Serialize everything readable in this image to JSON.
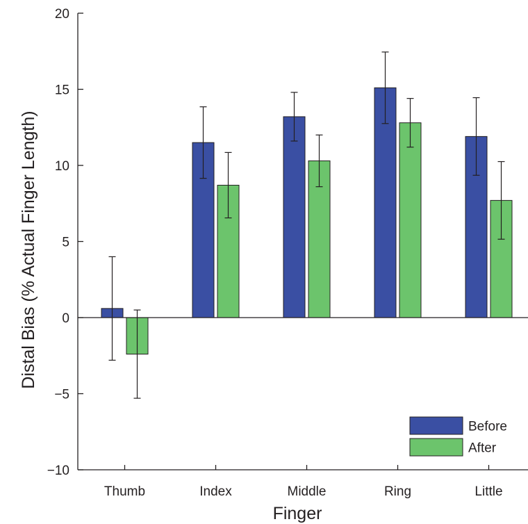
{
  "chart_data": {
    "type": "bar",
    "xlabel": "Finger",
    "ylabel": "Distal Bias (% Actual Finger Length)",
    "categories": [
      "Thumb",
      "Index",
      "Middle",
      "Ring",
      "Little"
    ],
    "ylim": [
      -10,
      20
    ],
    "yticks": [
      -10,
      -5,
      0,
      5,
      10,
      15,
      20
    ],
    "ytick_labels": [
      "−10",
      "−5",
      "0",
      "5",
      "10",
      "15",
      "20"
    ],
    "grid": false,
    "legend_position": "bottom-right",
    "series": [
      {
        "name": "Before",
        "color": "#3a4fa3",
        "values": [
          0.6,
          11.5,
          13.2,
          15.1,
          11.9
        ],
        "error": [
          3.4,
          2.35,
          1.6,
          2.35,
          2.55
        ]
      },
      {
        "name": "After",
        "color": "#6cc46c",
        "values": [
          -2.4,
          8.7,
          10.3,
          12.8,
          7.7
        ],
        "error": [
          2.9,
          2.15,
          1.7,
          1.6,
          2.55
        ]
      }
    ]
  }
}
